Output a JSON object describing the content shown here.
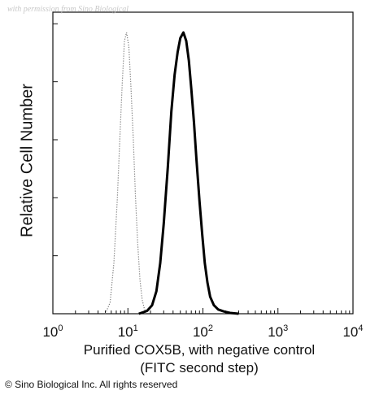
{
  "watermark": "with permission from Sino Biological",
  "copyright": "© Sino Biological Inc. All rights reserved",
  "chart_data": {
    "type": "area",
    "xscale": "log",
    "xlim": [
      1,
      10000
    ],
    "ylim": [
      0,
      1
    ],
    "ylabel": "Relative Cell Number",
    "xlabel_line1": "Purified COX5B, with negative control",
    "xlabel_line2": "(FITC second step)",
    "xticks": [
      {
        "value": 1,
        "base": "10",
        "exp": "0"
      },
      {
        "value": 10,
        "base": "10",
        "exp": "1"
      },
      {
        "value": 100,
        "base": "10",
        "exp": "2"
      },
      {
        "value": 1000,
        "base": "10",
        "exp": "3"
      },
      {
        "value": 10000,
        "base": "10",
        "exp": "4"
      }
    ],
    "series": [
      {
        "style": "dotted",
        "x": [
          5,
          5.8,
          6.5,
          7.2,
          7.8,
          8.4,
          9.0,
          9.6,
          10.3,
          11.0,
          11.8,
          12.6,
          13.5,
          14.5,
          15.5,
          16.5,
          17.5
        ],
        "y": [
          0,
          0.04,
          0.18,
          0.4,
          0.62,
          0.82,
          0.97,
          1.0,
          0.95,
          0.8,
          0.62,
          0.42,
          0.25,
          0.12,
          0.05,
          0.02,
          0
        ]
      },
      {
        "style": "solid",
        "x": [
          14,
          18,
          21,
          24,
          27,
          30,
          34,
          38,
          42,
          46,
          50,
          55,
          60,
          65,
          70,
          76,
          82,
          90,
          98,
          106,
          115,
          125,
          140,
          160,
          190,
          230,
          300
        ],
        "y": [
          0,
          0.01,
          0.03,
          0.08,
          0.18,
          0.32,
          0.52,
          0.72,
          0.85,
          0.93,
          0.98,
          1.0,
          0.97,
          0.9,
          0.8,
          0.68,
          0.55,
          0.4,
          0.28,
          0.18,
          0.11,
          0.06,
          0.03,
          0.015,
          0.008,
          0.003,
          0
        ]
      }
    ]
  }
}
